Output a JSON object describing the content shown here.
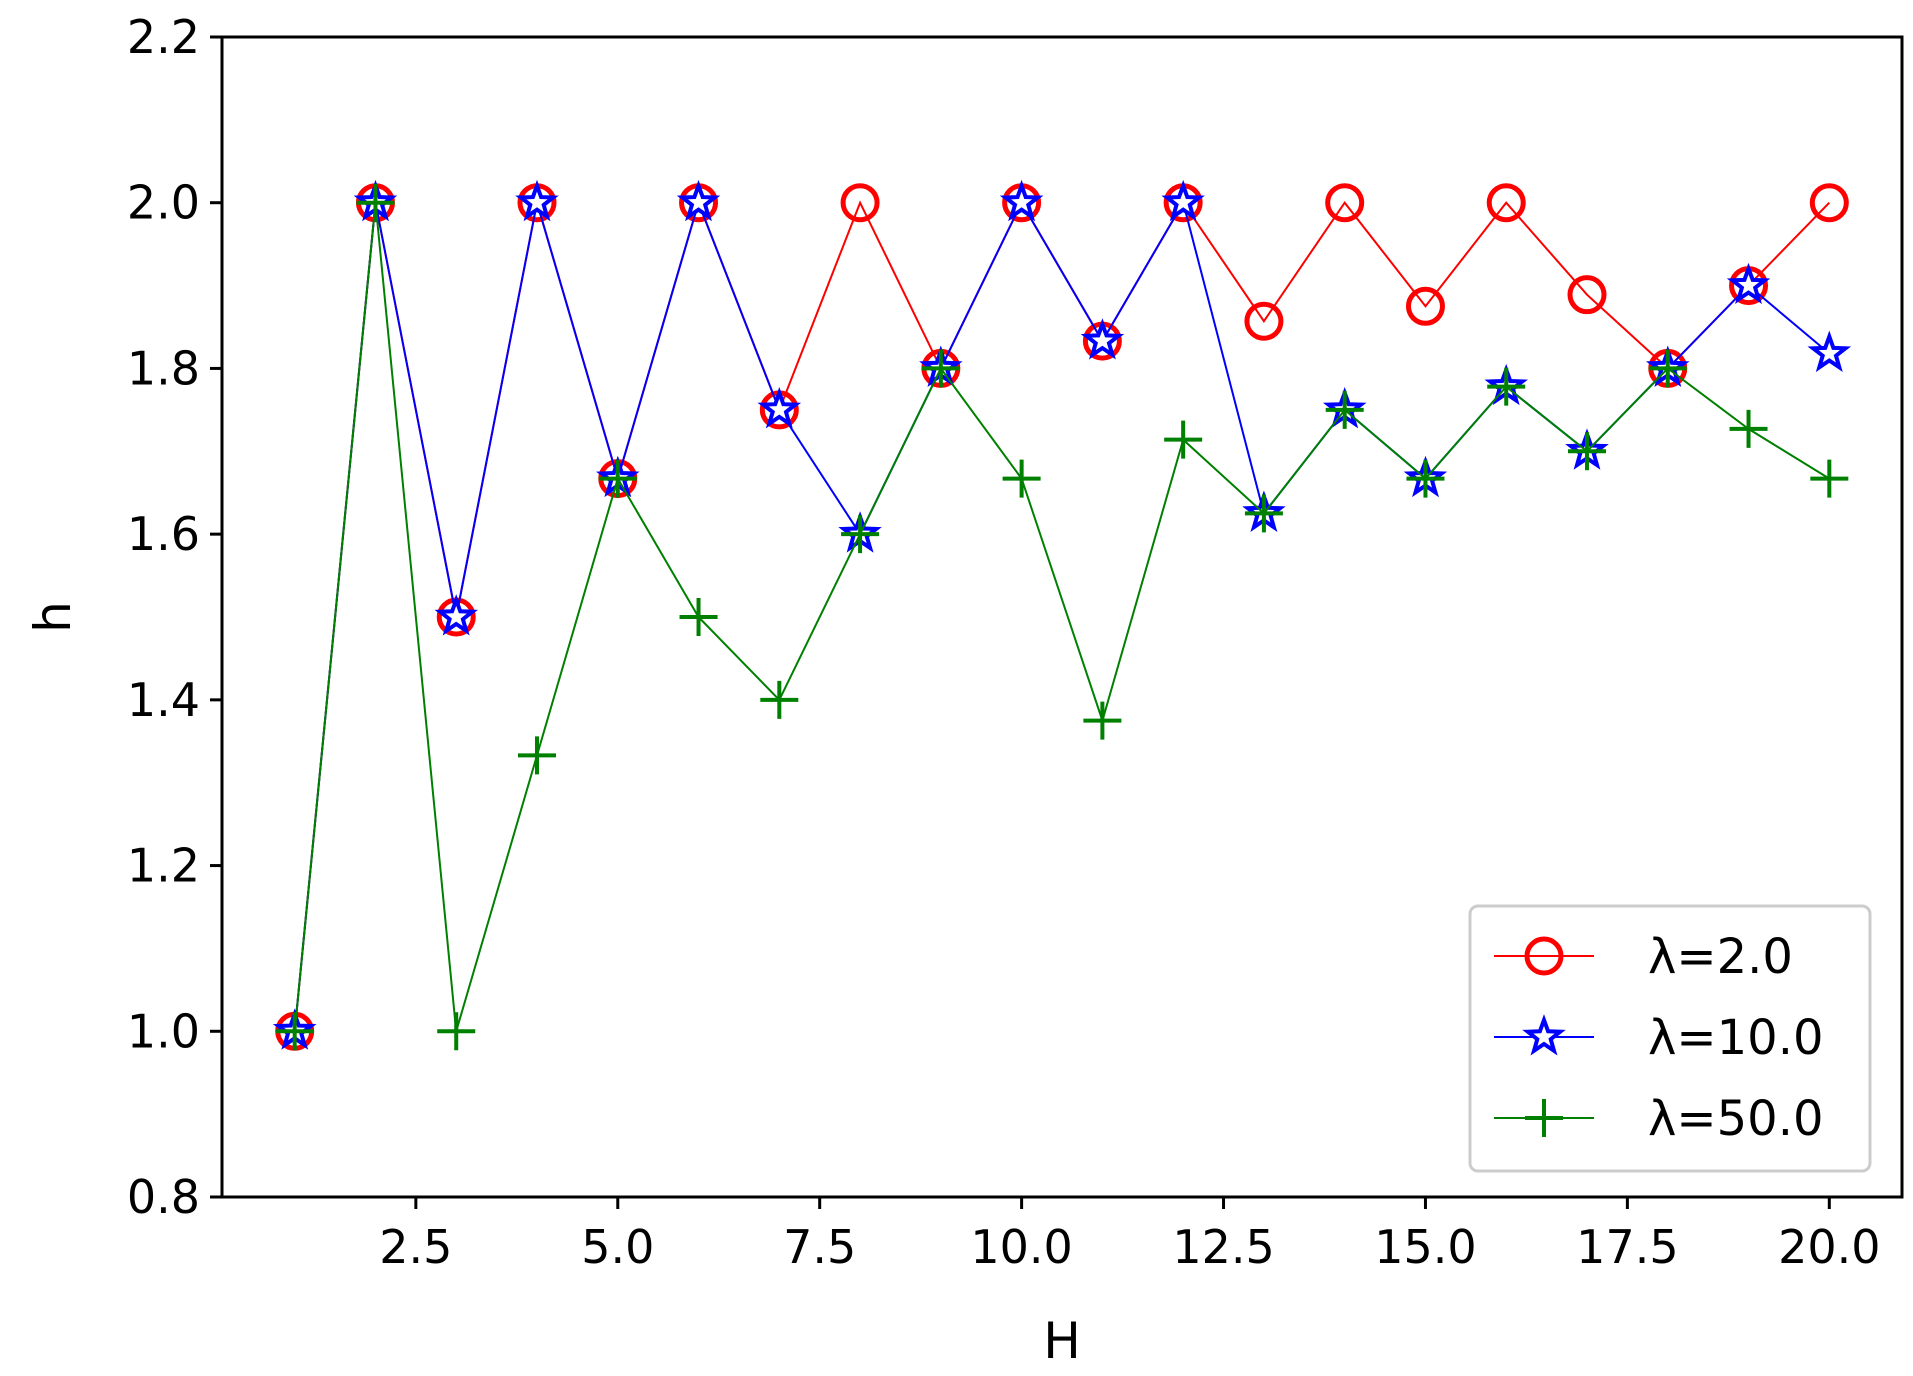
{
  "chart_data": {
    "type": "line",
    "title": "",
    "xlabel": "H",
    "ylabel": "h",
    "xlim": [
      0.1,
      20.9
    ],
    "ylim": [
      0.8,
      2.2
    ],
    "xticks": [
      "2.5",
      "5.0",
      "7.5",
      "10.0",
      "12.5",
      "15.0",
      "17.5",
      "20.0"
    ],
    "yticks": [
      "0.8",
      "1.0",
      "1.2",
      "1.4",
      "1.6",
      "1.8",
      "2.0",
      "2.2"
    ],
    "x": [
      1,
      2,
      3,
      4,
      5,
      6,
      7,
      8,
      9,
      10,
      11,
      12,
      13,
      14,
      15,
      16,
      17,
      18,
      19,
      20
    ],
    "series": [
      {
        "name": "λ=2.0",
        "color": "#ff0000",
        "marker": "circle",
        "values": [
          1.0,
          2.0,
          1.5,
          2.0,
          1.667,
          2.0,
          1.75,
          2.0,
          1.8,
          2.0,
          1.833,
          2.0,
          1.857,
          2.0,
          1.875,
          2.0,
          1.889,
          1.8,
          1.9,
          2.0
        ]
      },
      {
        "name": "λ=10.0",
        "color": "#0000ff",
        "marker": "star",
        "values": [
          1.0,
          2.0,
          1.5,
          2.0,
          1.667,
          2.0,
          1.75,
          1.6,
          1.8,
          2.0,
          1.833,
          2.0,
          1.625,
          1.75,
          1.667,
          1.778,
          1.7,
          1.8,
          1.9,
          1.818
        ]
      },
      {
        "name": "λ=50.0",
        "color": "#008000",
        "marker": "plus",
        "values": [
          1.0,
          2.0,
          1.0,
          1.333,
          1.667,
          1.5,
          1.4,
          1.6,
          1.8,
          1.667,
          1.375,
          1.714,
          1.625,
          1.75,
          1.667,
          1.778,
          1.7,
          1.8,
          1.727,
          1.667
        ]
      }
    ],
    "grid": false,
    "legend_position": "lower-right"
  }
}
